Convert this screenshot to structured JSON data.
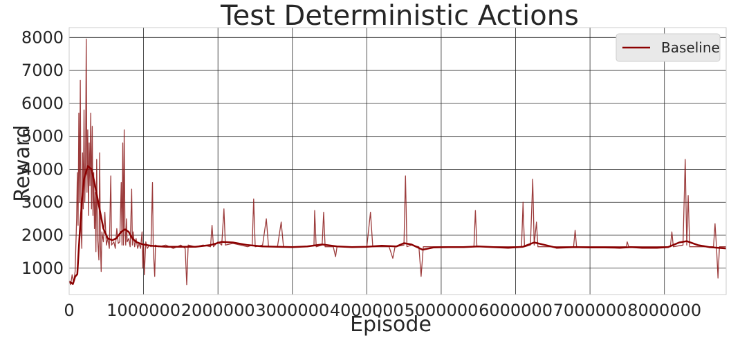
{
  "chart_data": {
    "type": "line",
    "title": "Test Deterministic Actions",
    "xlabel": "Episode",
    "ylabel": "Reward",
    "xlim": [
      0,
      8830000
    ],
    "ylim": [
      200,
      8300
    ],
    "x_ticks": [
      0,
      1000000,
      2000000,
      3000000,
      4000000,
      5000000,
      6000000,
      7000000,
      8000000
    ],
    "y_ticks": [
      1000,
      2000,
      3000,
      4000,
      5000,
      6000,
      7000,
      8000
    ],
    "x_tick_labels": [
      "0",
      "1000000",
      "2000000",
      "3000000",
      "4000000",
      "5000000",
      "6000000",
      "7000000",
      "8000000"
    ],
    "y_tick_labels": [
      "1000",
      "2000",
      "3000",
      "4000",
      "5000",
      "6000",
      "7000",
      "8000"
    ],
    "grid": true,
    "legend_position": "top-right",
    "colors": {
      "raw": "#8b1a1a",
      "smoothed": "#8b0000",
      "grid": "#262626"
    },
    "series": [
      {
        "name": "Baseline",
        "role": "smoothed",
        "points": [
          [
            0,
            600
          ],
          [
            50000,
            520
          ],
          [
            80000,
            740
          ],
          [
            110000,
            820
          ],
          [
            140000,
            2000
          ],
          [
            170000,
            3000
          ],
          [
            200000,
            3700
          ],
          [
            250000,
            4100
          ],
          [
            300000,
            4000
          ],
          [
            340000,
            3600
          ],
          [
            400000,
            2900
          ],
          [
            460000,
            2200
          ],
          [
            520000,
            1900
          ],
          [
            580000,
            1850
          ],
          [
            630000,
            1900
          ],
          [
            700000,
            2100
          ],
          [
            750000,
            2180
          ],
          [
            800000,
            2100
          ],
          [
            850000,
            1900
          ],
          [
            900000,
            1800
          ],
          [
            950000,
            1750
          ],
          [
            1000000,
            1720
          ],
          [
            1100000,
            1680
          ],
          [
            1300000,
            1650
          ],
          [
            1500000,
            1650
          ],
          [
            1700000,
            1650
          ],
          [
            1900000,
            1700
          ],
          [
            2050000,
            1800
          ],
          [
            2200000,
            1780
          ],
          [
            2400000,
            1700
          ],
          [
            2600000,
            1660
          ],
          [
            2800000,
            1650
          ],
          [
            3000000,
            1640
          ],
          [
            3200000,
            1660
          ],
          [
            3400000,
            1720
          ],
          [
            3600000,
            1660
          ],
          [
            3800000,
            1640
          ],
          [
            4000000,
            1650
          ],
          [
            4200000,
            1680
          ],
          [
            4400000,
            1660
          ],
          [
            4500000,
            1760
          ],
          [
            4600000,
            1720
          ],
          [
            4750000,
            1560
          ],
          [
            4900000,
            1630
          ],
          [
            5100000,
            1640
          ],
          [
            5300000,
            1640
          ],
          [
            5500000,
            1660
          ],
          [
            5700000,
            1640
          ],
          [
            5900000,
            1620
          ],
          [
            6100000,
            1650
          ],
          [
            6250000,
            1780
          ],
          [
            6400000,
            1700
          ],
          [
            6550000,
            1620
          ],
          [
            6800000,
            1640
          ],
          [
            7000000,
            1630
          ],
          [
            7200000,
            1630
          ],
          [
            7400000,
            1620
          ],
          [
            7550000,
            1640
          ],
          [
            7700000,
            1620
          ],
          [
            7900000,
            1620
          ],
          [
            8050000,
            1640
          ],
          [
            8200000,
            1780
          ],
          [
            8300000,
            1820
          ],
          [
            8450000,
            1700
          ],
          [
            8600000,
            1640
          ],
          [
            8830000,
            1600
          ]
        ]
      },
      {
        "name": "",
        "role": "raw",
        "points": [
          [
            0,
            600
          ],
          [
            20000,
            500
          ],
          [
            40000,
            800
          ],
          [
            60000,
            560
          ],
          [
            80000,
            900
          ],
          [
            100000,
            2500
          ],
          [
            110000,
            3900
          ],
          [
            120000,
            2300
          ],
          [
            130000,
            5700
          ],
          [
            140000,
            3000
          ],
          [
            150000,
            6700
          ],
          [
            160000,
            2200
          ],
          [
            170000,
            1600
          ],
          [
            180000,
            4500
          ],
          [
            190000,
            2800
          ],
          [
            200000,
            5800
          ],
          [
            210000,
            3000
          ],
          [
            220000,
            4200
          ],
          [
            230000,
            7950
          ],
          [
            240000,
            3300
          ],
          [
            250000,
            5200
          ],
          [
            260000,
            2600
          ],
          [
            270000,
            4800
          ],
          [
            280000,
            3500
          ],
          [
            290000,
            5700
          ],
          [
            300000,
            2800
          ],
          [
            310000,
            5300
          ],
          [
            320000,
            2600
          ],
          [
            330000,
            3900
          ],
          [
            340000,
            2200
          ],
          [
            350000,
            3300
          ],
          [
            360000,
            1500
          ],
          [
            370000,
            4300
          ],
          [
            380000,
            2000
          ],
          [
            390000,
            1600
          ],
          [
            400000,
            1250
          ],
          [
            410000,
            4500
          ],
          [
            420000,
            1700
          ],
          [
            430000,
            900
          ],
          [
            440000,
            2100
          ],
          [
            460000,
            1800
          ],
          [
            480000,
            2700
          ],
          [
            500000,
            1700
          ],
          [
            520000,
            1900
          ],
          [
            540000,
            1600
          ],
          [
            560000,
            3800
          ],
          [
            570000,
            1700
          ],
          [
            600000,
            1800
          ],
          [
            620000,
            1600
          ],
          [
            640000,
            2200
          ],
          [
            660000,
            1750
          ],
          [
            680000,
            1800
          ],
          [
            700000,
            3600
          ],
          [
            710000,
            1700
          ],
          [
            720000,
            4800
          ],
          [
            730000,
            1700
          ],
          [
            740000,
            5200
          ],
          [
            750000,
            2200
          ],
          [
            760000,
            1700
          ],
          [
            770000,
            2500
          ],
          [
            780000,
            1800
          ],
          [
            800000,
            1900
          ],
          [
            820000,
            1650
          ],
          [
            840000,
            3400
          ],
          [
            850000,
            1700
          ],
          [
            860000,
            2100
          ],
          [
            880000,
            1650
          ],
          [
            900000,
            1900
          ],
          [
            920000,
            1600
          ],
          [
            940000,
            1750
          ],
          [
            960000,
            1600
          ],
          [
            980000,
            2100
          ],
          [
            990000,
            1000
          ],
          [
            1000000,
            1700
          ],
          [
            1010000,
            800
          ],
          [
            1030000,
            1800
          ],
          [
            1050000,
            1600
          ],
          [
            1080000,
            1700
          ],
          [
            1100000,
            1650
          ],
          [
            1120000,
            3600
          ],
          [
            1130000,
            1600
          ],
          [
            1150000,
            750
          ],
          [
            1160000,
            1700
          ],
          [
            1200000,
            1650
          ],
          [
            1300000,
            1700
          ],
          [
            1400000,
            1600
          ],
          [
            1500000,
            1700
          ],
          [
            1560000,
            1600
          ],
          [
            1580000,
            500
          ],
          [
            1600000,
            1700
          ],
          [
            1700000,
            1650
          ],
          [
            1800000,
            1700
          ],
          [
            1900000,
            1650
          ],
          [
            1920000,
            2300
          ],
          [
            1940000,
            1650
          ],
          [
            2000000,
            1800
          ],
          [
            2050000,
            1700
          ],
          [
            2080000,
            2800
          ],
          [
            2100000,
            1700
          ],
          [
            2200000,
            1750
          ],
          [
            2300000,
            1700
          ],
          [
            2400000,
            1650
          ],
          [
            2460000,
            1700
          ],
          [
            2480000,
            3100
          ],
          [
            2500000,
            1650
          ],
          [
            2600000,
            1700
          ],
          [
            2650000,
            2500
          ],
          [
            2680000,
            1650
          ],
          [
            2800000,
            1650
          ],
          [
            2850000,
            2400
          ],
          [
            2880000,
            1650
          ],
          [
            3000000,
            1650
          ],
          [
            3200000,
            1650
          ],
          [
            3290000,
            1700
          ],
          [
            3300000,
            2750
          ],
          [
            3320000,
            1650
          ],
          [
            3400000,
            1700
          ],
          [
            3420000,
            2700
          ],
          [
            3440000,
            1650
          ],
          [
            3550000,
            1650
          ],
          [
            3580000,
            1350
          ],
          [
            3600000,
            1650
          ],
          [
            3800000,
            1650
          ],
          [
            4000000,
            1650
          ],
          [
            4050000,
            2700
          ],
          [
            4080000,
            1650
          ],
          [
            4200000,
            1650
          ],
          [
            4300000,
            1650
          ],
          [
            4350000,
            1300
          ],
          [
            4380000,
            1650
          ],
          [
            4500000,
            1700
          ],
          [
            4520000,
            3800
          ],
          [
            4540000,
            1650
          ],
          [
            4600000,
            1700
          ],
          [
            4700000,
            1650
          ],
          [
            4730000,
            750
          ],
          [
            4760000,
            1650
          ],
          [
            4900000,
            1650
          ],
          [
            5000000,
            1650
          ],
          [
            5200000,
            1650
          ],
          [
            5400000,
            1650
          ],
          [
            5440000,
            1650
          ],
          [
            5460000,
            2750
          ],
          [
            5480000,
            1650
          ],
          [
            5700000,
            1650
          ],
          [
            5900000,
            1650
          ],
          [
            6080000,
            1650
          ],
          [
            6100000,
            3000
          ],
          [
            6120000,
            1650
          ],
          [
            6200000,
            1700
          ],
          [
            6230000,
            3700
          ],
          [
            6250000,
            1700
          ],
          [
            6280000,
            2400
          ],
          [
            6300000,
            1650
          ],
          [
            6500000,
            1650
          ],
          [
            6780000,
            1650
          ],
          [
            6800000,
            2150
          ],
          [
            6820000,
            1650
          ],
          [
            7000000,
            1650
          ],
          [
            7200000,
            1650
          ],
          [
            7400000,
            1650
          ],
          [
            7490000,
            1650
          ],
          [
            7500000,
            1800
          ],
          [
            7520000,
            1650
          ],
          [
            7700000,
            1650
          ],
          [
            7900000,
            1650
          ],
          [
            8080000,
            1650
          ],
          [
            8100000,
            2100
          ],
          [
            8120000,
            1650
          ],
          [
            8250000,
            1700
          ],
          [
            8280000,
            4300
          ],
          [
            8300000,
            1700
          ],
          [
            8320000,
            3200
          ],
          [
            8340000,
            1650
          ],
          [
            8500000,
            1650
          ],
          [
            8660000,
            1650
          ],
          [
            8680000,
            2350
          ],
          [
            8700000,
            1650
          ],
          [
            8720000,
            700
          ],
          [
            8740000,
            1650
          ],
          [
            8830000,
            1650
          ]
        ]
      }
    ]
  }
}
